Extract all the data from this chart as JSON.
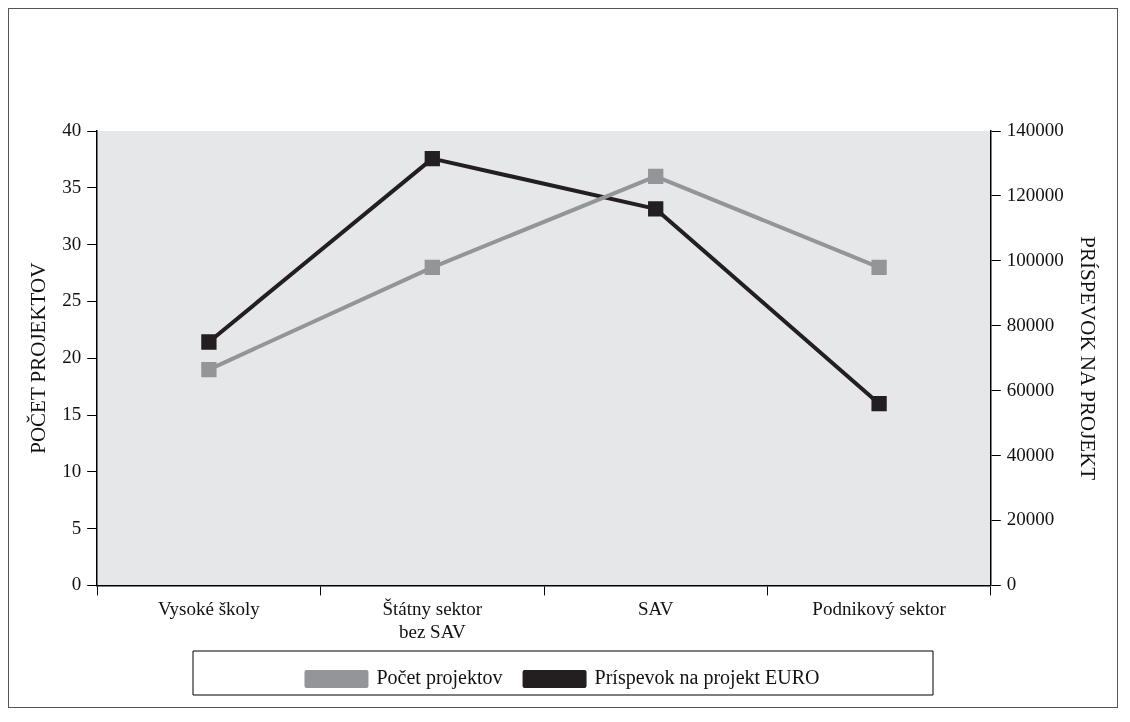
{
  "chart_data": {
    "type": "line",
    "xlabel": null,
    "ylabel": "POČET PROJEKTOV",
    "y2label": "PRÍSPEVOK NA PROJEKT",
    "categories": [
      "Vysoké školy",
      "Štátny sektor bez SAV",
      "SAV",
      "Podnikový sektor"
    ],
    "series": [
      {
        "name": "Počet projektov",
        "color": "#939598",
        "values": [
          19,
          28,
          36,
          28
        ]
      },
      {
        "name": "Príspevok na projekt EURO",
        "color": "#231f20",
        "values": [
          75000,
          131500,
          116000,
          56000
        ],
        "axis": "y2"
      }
    ],
    "ylim": [
      0,
      40
    ],
    "yticks": [
      0,
      5,
      10,
      15,
      20,
      25,
      30,
      35,
      40
    ],
    "y2lim": [
      0,
      140000
    ],
    "y2ticks": [
      0,
      20000,
      40000,
      60000,
      80000,
      100000,
      120000,
      140000
    ],
    "grid": false,
    "legend": "bottom",
    "marker": "square",
    "line_style": "solid"
  }
}
